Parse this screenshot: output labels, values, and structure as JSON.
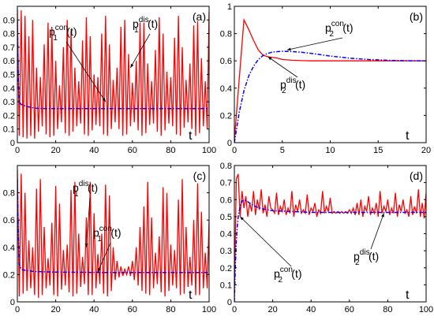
{
  "chart_data": [
    {
      "type": "line",
      "panel_label": "(a)",
      "xlabel": "t",
      "xlim": [
        0,
        100
      ],
      "ylim": [
        0,
        1
      ],
      "xticks": [
        0,
        20,
        40,
        60,
        80,
        100
      ],
      "yticks": [
        0,
        0.1,
        0.2,
        0.3,
        0.4,
        0.5,
        0.6,
        0.7,
        0.8,
        0.9
      ],
      "yticklabels": [
        "0",
        "0.1",
        "0.2",
        "0.3",
        "0.4",
        "0.5",
        "0.6",
        "0.7",
        "0.8",
        "0.9"
      ],
      "series": [
        {
          "name": "p1dis(t)",
          "color": "#ff0000",
          "style": "solid",
          "x": [
            0,
            1,
            2,
            3,
            4,
            5,
            6,
            7,
            8,
            9,
            10,
            11,
            12,
            13,
            14,
            15,
            16,
            17,
            18,
            19,
            20,
            21,
            22,
            23,
            24,
            25,
            26,
            27,
            28,
            29,
            30,
            31,
            32,
            33,
            34,
            35,
            36,
            37,
            38,
            39,
            40,
            41,
            42,
            43,
            44,
            45,
            46,
            47,
            48,
            49,
            50,
            51,
            52,
            53,
            54,
            55,
            56,
            57,
            58,
            59,
            60,
            61,
            62,
            63,
            64,
            65,
            66,
            67,
            68,
            69,
            70,
            71,
            72,
            73,
            74,
            75,
            76,
            77,
            78,
            79,
            80,
            81,
            82,
            83,
            84,
            85,
            86,
            87,
            88,
            89,
            90,
            91,
            92,
            93,
            94,
            95,
            96,
            97,
            98,
            99,
            100
          ],
          "y": [
            0.98,
            0.05,
            0.97,
            0.04,
            0.93,
            0.03,
            0.78,
            0.05,
            0.9,
            0.03,
            0.55,
            0.08,
            0.48,
            0.12,
            0.72,
            0.06,
            0.88,
            0.04,
            0.85,
            0.05,
            0.6,
            0.1,
            0.42,
            0.15,
            0.7,
            0.07,
            0.9,
            0.05,
            0.82,
            0.08,
            0.55,
            0.12,
            0.45,
            0.14,
            0.75,
            0.06,
            0.92,
            0.05,
            0.78,
            0.09,
            0.5,
            0.13,
            0.48,
            0.12,
            0.8,
            0.06,
            0.93,
            0.05,
            0.72,
            0.1,
            0.46,
            0.15,
            0.55,
            0.1,
            0.85,
            0.05,
            0.9,
            0.06,
            0.65,
            0.12,
            0.44,
            0.15,
            0.6,
            0.09,
            0.88,
            0.05,
            0.88,
            0.07,
            0.58,
            0.13,
            0.45,
            0.14,
            0.68,
            0.08,
            0.92,
            0.05,
            0.8,
            0.09,
            0.52,
            0.14,
            0.48,
            0.12,
            0.77,
            0.06,
            0.93,
            0.05,
            0.7,
            0.11,
            0.46,
            0.15,
            0.58,
            0.1,
            0.86,
            0.05,
            0.89,
            0.07,
            0.62,
            0.12,
            0.45,
            0.1,
            0.96
          ]
        },
        {
          "name": "p1con(t)",
          "color": "#0000ff",
          "style": "dash-dot",
          "x": [
            0,
            0.5,
            1,
            2,
            3,
            4,
            6,
            8,
            10,
            15,
            20,
            30,
            40,
            50,
            60,
            70,
            80,
            90,
            100
          ],
          "y": [
            0.9,
            0.45,
            0.3,
            0.28,
            0.275,
            0.27,
            0.262,
            0.256,
            0.252,
            0.25,
            0.25,
            0.25,
            0.25,
            0.25,
            0.25,
            0.25,
            0.25,
            0.25,
            0.25
          ]
        }
      ],
      "annotations": [
        {
          "text": "p1con(t)",
          "target": [
            46,
            0.3
          ]
        },
        {
          "text": "p1dis(t)",
          "target": [
            59,
            0.55
          ]
        }
      ]
    },
    {
      "type": "line",
      "panel_label": "(b)",
      "xlabel": "t",
      "xlim": [
        0,
        20
      ],
      "ylim": [
        0,
        1
      ],
      "xticks": [
        0,
        5,
        10,
        15,
        20
      ],
      "yticks": [
        0,
        0.2,
        0.4,
        0.6,
        0.8,
        1
      ],
      "yticklabels": [
        "0",
        "0.2",
        "0.4",
        "0.6",
        "0.8",
        "1"
      ],
      "series": [
        {
          "name": "p2dis(t)",
          "color": "#ff0000",
          "style": "solid",
          "x": [
            0,
            1,
            1.5,
            2,
            2.5,
            3,
            3.5,
            4,
            4.5,
            5,
            6,
            7,
            8,
            10,
            12,
            15,
            20
          ],
          "y": [
            0.02,
            0.9,
            0.83,
            0.75,
            0.68,
            0.64,
            0.63,
            0.625,
            0.62,
            0.61,
            0.605,
            0.602,
            0.6,
            0.6,
            0.6,
            0.6,
            0.6
          ]
        },
        {
          "name": "p2con(t)",
          "color": "#0000ff",
          "style": "dash-dot",
          "x": [
            0,
            0.5,
            1,
            1.5,
            2,
            2.5,
            3,
            3.5,
            4,
            5,
            6,
            7,
            8,
            9,
            10,
            12,
            14,
            16,
            18,
            20
          ],
          "y": [
            0,
            0.22,
            0.38,
            0.49,
            0.56,
            0.61,
            0.64,
            0.655,
            0.665,
            0.67,
            0.668,
            0.663,
            0.655,
            0.645,
            0.635,
            0.62,
            0.61,
            0.604,
            0.601,
            0.6
          ]
        }
      ],
      "annotations": [
        {
          "text": "p2con(t)",
          "target": [
            5.5,
            0.68
          ]
        },
        {
          "text": "p2dis(t)",
          "target": [
            3.5,
            0.63
          ]
        }
      ]
    },
    {
      "type": "line",
      "panel_label": "(c)",
      "xlabel": "t",
      "xlim": [
        0,
        100
      ],
      "ylim": [
        0,
        1
      ],
      "xticks": [
        0,
        20,
        40,
        60,
        80,
        100
      ],
      "yticks": [
        0,
        0.2,
        0.4,
        0.6,
        0.8
      ],
      "yticklabels": [
        "0",
        "0.2",
        "0.4",
        "0.6",
        "0.8"
      ],
      "series": [
        {
          "name": "p1dis(t)",
          "color": "#ff0000",
          "style": "solid",
          "x": [
            0,
            1,
            2,
            3,
            4,
            5,
            6,
            7,
            8,
            9,
            10,
            11,
            12,
            13,
            14,
            15,
            16,
            17,
            18,
            19,
            20,
            21,
            22,
            23,
            24,
            25,
            26,
            27,
            28,
            29,
            30,
            31,
            32,
            33,
            34,
            35,
            36,
            37,
            38,
            39,
            40,
            41,
            42,
            43,
            44,
            45,
            46,
            47,
            48,
            49,
            50,
            51,
            52,
            53,
            54,
            55,
            56,
            57,
            58,
            59,
            60,
            61,
            62,
            63,
            64,
            65,
            66,
            67,
            68,
            69,
            70,
            71,
            72,
            73,
            74,
            75,
            76,
            77,
            78,
            79,
            80,
            81,
            82,
            83,
            84,
            85,
            86,
            87,
            88,
            89,
            90,
            91,
            92,
            93,
            94,
            95,
            96,
            97,
            98,
            99,
            100
          ],
          "y": [
            0.97,
            0.04,
            0.94,
            0.06,
            0.8,
            0.08,
            0.45,
            0.1,
            0.4,
            0.05,
            0.83,
            0.03,
            0.9,
            0.05,
            0.55,
            0.1,
            0.32,
            0.12,
            0.58,
            0.05,
            0.85,
            0.04,
            0.72,
            0.09,
            0.38,
            0.12,
            0.42,
            0.07,
            0.82,
            0.04,
            0.88,
            0.06,
            0.5,
            0.11,
            0.33,
            0.13,
            0.62,
            0.05,
            0.88,
            0.05,
            0.65,
            0.1,
            0.35,
            0.13,
            0.5,
            0.06,
            0.86,
            0.04,
            0.78,
            0.08,
            0.4,
            0.16,
            0.3,
            0.18,
            0.26,
            0.19,
            0.24,
            0.2,
            0.26,
            0.19,
            0.3,
            0.16,
            0.4,
            0.12,
            0.55,
            0.08,
            0.7,
            0.06,
            0.88,
            0.05,
            0.62,
            0.1,
            0.36,
            0.13,
            0.48,
            0.07,
            0.84,
            0.04,
            0.8,
            0.08,
            0.42,
            0.12,
            0.38,
            0.1,
            0.75,
            0.05,
            0.9,
            0.06,
            0.55,
            0.11,
            0.33,
            0.12,
            0.6,
            0.05,
            0.87,
            0.05,
            0.66,
            0.1,
            0.36,
            0.1,
            0.6
          ]
        },
        {
          "name": "p1con(t)",
          "color": "#0000ff",
          "style": "dash-dot",
          "x": [
            0,
            0.5,
            1,
            2,
            3,
            4,
            6,
            8,
            10,
            15,
            20,
            30,
            40,
            50,
            60,
            70,
            80,
            90,
            100
          ],
          "y": [
            0.9,
            0.5,
            0.28,
            0.24,
            0.235,
            0.232,
            0.228,
            0.224,
            0.222,
            0.22,
            0.218,
            0.217,
            0.216,
            0.215,
            0.215,
            0.215,
            0.215,
            0.215,
            0.215
          ]
        }
      ],
      "annotations": [
        {
          "text": "p1dis(t)",
          "target": [
            36,
            0.4
          ]
        },
        {
          "text": "p1con(t)",
          "target": [
            42,
            0.22
          ]
        }
      ]
    },
    {
      "type": "line",
      "panel_label": "(d)",
      "xlabel": "t",
      "xlim": [
        0,
        100
      ],
      "ylim": [
        0,
        0.8
      ],
      "xticks": [
        0,
        20,
        40,
        60,
        80,
        100
      ],
      "yticks": [
        0,
        0.1,
        0.2,
        0.3,
        0.4,
        0.5,
        0.6,
        0.7,
        0.8
      ],
      "yticklabels": [
        "0",
        "0.1",
        "0.2",
        "0.3",
        "0.4",
        "0.5",
        "0.6",
        "0.7",
        "0.8"
      ],
      "series": [
        {
          "name": "p2dis(t)",
          "color": "#ff0000",
          "style": "solid",
          "x": [
            0,
            1,
            2,
            3,
            4,
            5,
            6,
            7,
            8,
            9,
            10,
            11,
            12,
            13,
            14,
            15,
            16,
            17,
            18,
            19,
            20,
            21,
            22,
            23,
            24,
            25,
            26,
            27,
            28,
            29,
            30,
            31,
            32,
            33,
            34,
            35,
            36,
            37,
            38,
            39,
            40,
            41,
            42,
            43,
            44,
            45,
            46,
            47,
            48,
            49,
            50,
            51,
            52,
            53,
            54,
            55,
            56,
            57,
            58,
            59,
            60,
            61,
            62,
            63,
            64,
            65,
            66,
            67,
            68,
            69,
            70,
            71,
            72,
            73,
            74,
            75,
            76,
            77,
            78,
            79,
            80,
            81,
            82,
            83,
            84,
            85,
            86,
            87,
            88,
            89,
            90,
            91,
            92,
            93,
            94,
            95,
            96,
            97,
            98,
            99,
            100
          ],
          "y": [
            0.02,
            0.72,
            0.75,
            0.5,
            0.65,
            0.55,
            0.62,
            0.5,
            0.58,
            0.53,
            0.65,
            0.51,
            0.6,
            0.54,
            0.66,
            0.52,
            0.57,
            0.5,
            0.62,
            0.55,
            0.54,
            0.52,
            0.64,
            0.51,
            0.56,
            0.53,
            0.6,
            0.51,
            0.55,
            0.52,
            0.65,
            0.5,
            0.57,
            0.53,
            0.6,
            0.52,
            0.54,
            0.52,
            0.63,
            0.51,
            0.55,
            0.53,
            0.58,
            0.5,
            0.54,
            0.52,
            0.65,
            0.52,
            0.56,
            0.53,
            0.61,
            0.52,
            0.53,
            0.52,
            0.53,
            0.52,
            0.53,
            0.52,
            0.53,
            0.52,
            0.54,
            0.52,
            0.55,
            0.51,
            0.58,
            0.51,
            0.6,
            0.5,
            0.56,
            0.53,
            0.62,
            0.51,
            0.55,
            0.52,
            0.58,
            0.5,
            0.65,
            0.52,
            0.56,
            0.53,
            0.6,
            0.51,
            0.55,
            0.52,
            0.64,
            0.5,
            0.57,
            0.53,
            0.6,
            0.52,
            0.54,
            0.5,
            0.62,
            0.51,
            0.56,
            0.52,
            0.66,
            0.5,
            0.58,
            0.49,
            0.64
          ]
        },
        {
          "name": "p2con(t)",
          "color": "#0000ff",
          "style": "dash-dot",
          "x": [
            0,
            0.5,
            1,
            1.5,
            2,
            3,
            4,
            5,
            6,
            8,
            10,
            12,
            15,
            20,
            30,
            40,
            50,
            60,
            70,
            80,
            90,
            100
          ],
          "y": [
            0,
            0.2,
            0.35,
            0.44,
            0.5,
            0.56,
            0.59,
            0.6,
            0.595,
            0.58,
            0.565,
            0.555,
            0.545,
            0.535,
            0.53,
            0.525,
            0.525,
            0.525,
            0.525,
            0.525,
            0.525,
            0.525
          ]
        }
      ],
      "annotations": [
        {
          "text": "p2con(t)",
          "target": [
            3,
            0.5
          ]
        },
        {
          "text": "p2dis(t)",
          "target": [
            78,
            0.52
          ]
        }
      ]
    }
  ]
}
